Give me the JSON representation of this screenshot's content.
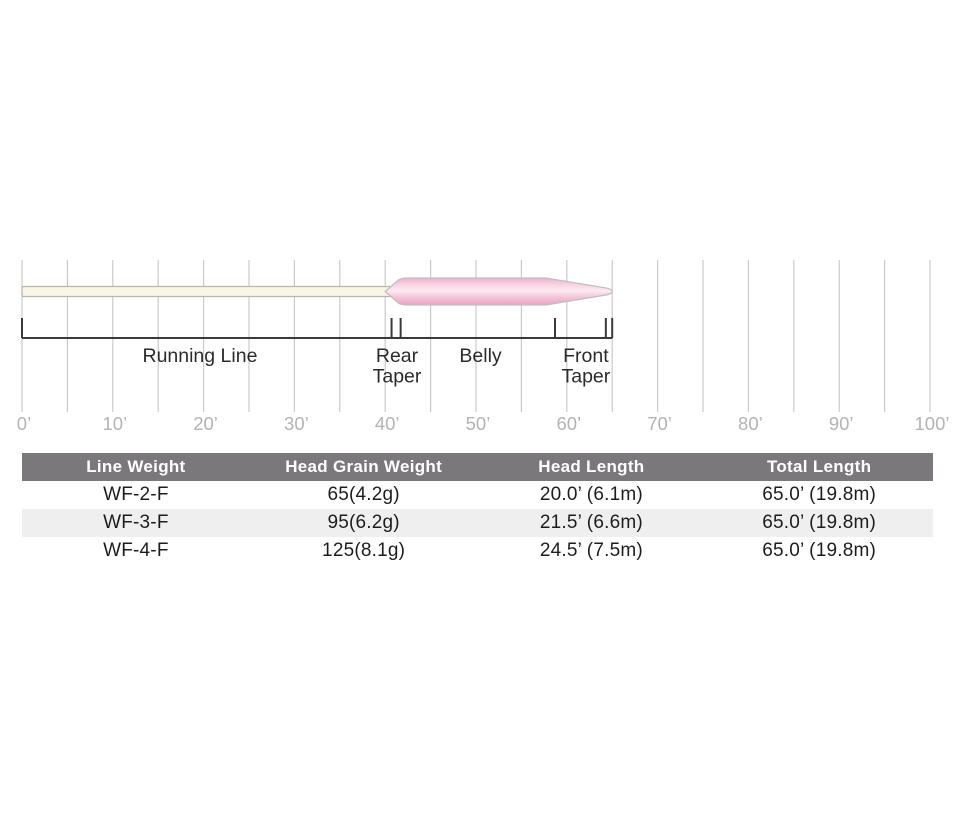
{
  "colors": {
    "background": "#ffffff",
    "gridline": "#cacaca",
    "axis_text": "#b3b3b3",
    "bracket_line": "#3a3a3a",
    "label_text": "#2b2b2b",
    "running_line_fill": "#f9f6e5",
    "running_line_stroke": "#b8b5ae",
    "belly_edge_pink": "#ecaecb",
    "belly_mid_pink": "#fce9f0",
    "belly_deep_pink": "#e8a3c2",
    "belly_stroke": "#c1bec0",
    "table_header_bg": "#7a787b",
    "table_header_text": "#ffffff",
    "table_stripe_bg": "#efefef",
    "table_cell_text": "#1d1d1d"
  },
  "diagram": {
    "unit": "feet",
    "scale": {
      "min_ft": 0,
      "max_ft": 100,
      "minor_step_ft": 5,
      "major_step_ft": 10
    },
    "axis_labels": [
      {
        "ft": 0,
        "label": "0’"
      },
      {
        "ft": 10,
        "label": "10’"
      },
      {
        "ft": 20,
        "label": "20’"
      },
      {
        "ft": 30,
        "label": "30’"
      },
      {
        "ft": 40,
        "label": "40’"
      },
      {
        "ft": 50,
        "label": "50’"
      },
      {
        "ft": 60,
        "label": "60’"
      },
      {
        "ft": 70,
        "label": "70’"
      },
      {
        "ft": 80,
        "label": "80’"
      },
      {
        "ft": 90,
        "label": "90’"
      },
      {
        "ft": 100,
        "label": "100’"
      }
    ],
    "segments": [
      {
        "name": "Running Line",
        "start_ft": 0,
        "end_ft": 40.7
      },
      {
        "name": "Rear Taper",
        "start_ft": 40.7,
        "end_ft": 41.7
      },
      {
        "name": "Belly",
        "start_ft": 41.7,
        "end_ft": 58.7
      },
      {
        "name": "Front Taper",
        "start_ft": 58.7,
        "end_ft": 65.0
      }
    ],
    "total_length_ft": 65.0,
    "profile_geometry_ft": {
      "running_line_start": 0,
      "running_line_end": 40.7,
      "head_point": 40.0,
      "shoulder": 41.5,
      "belly_flat_start": 42.5,
      "belly_flat_end": 57.7,
      "taper_end": 63.9,
      "tip": 65.0
    },
    "bracket": {
      "start_ft": 0,
      "end_ft": 65.0,
      "tick_positions_ft": [
        0,
        40.7,
        41.7,
        58.7,
        64.3,
        65.0
      ],
      "labels": [
        {
          "lines": [
            "Running Line"
          ],
          "center_ft": 19.6
        },
        {
          "lines": [
            "Rear",
            "Taper"
          ],
          "center_ft": 41.3
        },
        {
          "lines": [
            "Belly"
          ],
          "center_ft": 50.5
        },
        {
          "lines": [
            "Front",
            "Taper"
          ],
          "center_ft": 62.1
        }
      ]
    }
  },
  "table": {
    "columns": [
      "Line Weight",
      "Head Grain Weight",
      "Head Length",
      "Total Length"
    ],
    "rows": [
      [
        "WF-2-F",
        "65(4.2g)",
        "20.0’ (6.1m)",
        "65.0’ (19.8m)"
      ],
      [
        "WF-3-F",
        "95(6.2g)",
        "21.5’ (6.6m)",
        "65.0’ (19.8m)"
      ],
      [
        "WF-4-F",
        "125(8.1g)",
        "24.5’ (7.5m)",
        "65.0’ (19.8m)"
      ]
    ]
  }
}
